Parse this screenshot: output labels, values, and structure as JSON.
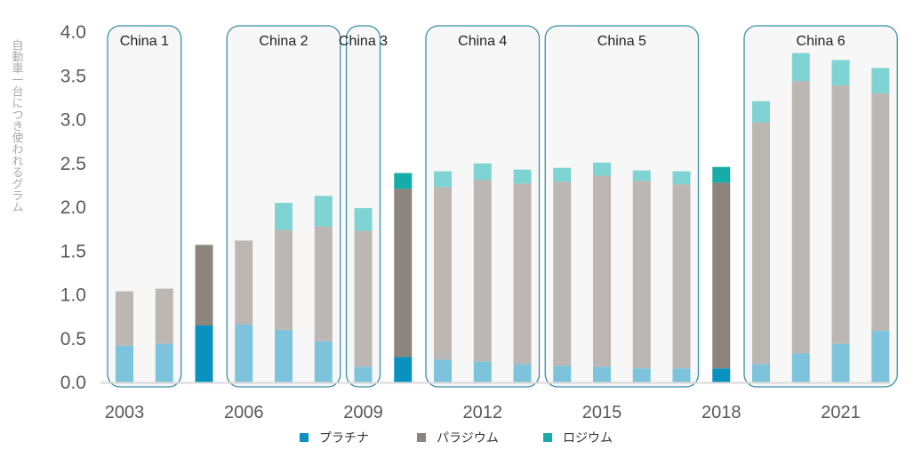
{
  "chart_data": {
    "type": "bar",
    "stacked": true,
    "ylabel": "自動車一台につき使われるグラム",
    "ylim": [
      0,
      4.0
    ],
    "yticks": [
      "0.0",
      "0.5",
      "1.0",
      "1.5",
      "2.0",
      "2.5",
      "3.0",
      "3.5",
      "4.0"
    ],
    "xticks": [
      "2003",
      "2006",
      "2009",
      "2012",
      "2015",
      "2018",
      "2021"
    ],
    "categories": [
      "2003",
      "2004",
      "2005",
      "2006",
      "2007",
      "2008",
      "2009",
      "2010",
      "2011",
      "2012",
      "2013",
      "2014",
      "2015",
      "2016",
      "2017",
      "2018",
      "2019",
      "2020",
      "2021",
      "2022"
    ],
    "series": [
      {
        "name": "プラチナ",
        "values": [
          0.42,
          0.44,
          0.65,
          0.66,
          0.6,
          0.47,
          0.18,
          0.29,
          0.26,
          0.24,
          0.21,
          0.19,
          0.18,
          0.16,
          0.16,
          0.16,
          0.21,
          0.33,
          0.44,
          0.59
        ]
      },
      {
        "name": "パラジウム",
        "values": [
          0.62,
          0.63,
          0.92,
          0.96,
          1.14,
          1.31,
          1.55,
          1.92,
          1.97,
          2.07,
          2.06,
          2.1,
          2.18,
          2.14,
          2.1,
          2.12,
          2.76,
          3.11,
          2.95,
          2.71
        ]
      },
      {
        "name": "ロジウム",
        "values": [
          0,
          0,
          0,
          0,
          0.31,
          0.35,
          0.26,
          0.18,
          0.18,
          0.19,
          0.16,
          0.16,
          0.15,
          0.12,
          0.15,
          0.18,
          0.24,
          0.32,
          0.29,
          0.29
        ]
      }
    ],
    "groups": [
      {
        "label": "China 1",
        "from": 0,
        "to": 1
      },
      {
        "label": "China 2",
        "from": 3,
        "to": 5
      },
      {
        "label": "China 3",
        "from": 6,
        "to": 6
      },
      {
        "label": "China 4",
        "from": 8,
        "to": 10
      },
      {
        "label": "China 5",
        "from": 11,
        "to": 14
      },
      {
        "label": "China 6",
        "from": 16,
        "to": 19
      }
    ],
    "colors": {
      "platinum_in_group": "#7dc3dc",
      "platinum_out_group": "#0b91c0",
      "palladium_in_group": "#bcb7b2",
      "palladium_out_group": "#8c857d",
      "rhodium_in_group": "#7fd3d2",
      "rhodium_out_group": "#16ada8",
      "group_box": "#3a8fa6",
      "group_fill": "#f7f7f7",
      "axis": "#d9d9d9"
    },
    "legend": [
      {
        "label": "プラチナ",
        "color": "#0b91c0"
      },
      {
        "label": "パラジウム",
        "color": "#8c857d"
      },
      {
        "label": "ロジウム",
        "color": "#16ada8"
      }
    ],
    "legend_position": "bottom",
    "grid": false
  }
}
